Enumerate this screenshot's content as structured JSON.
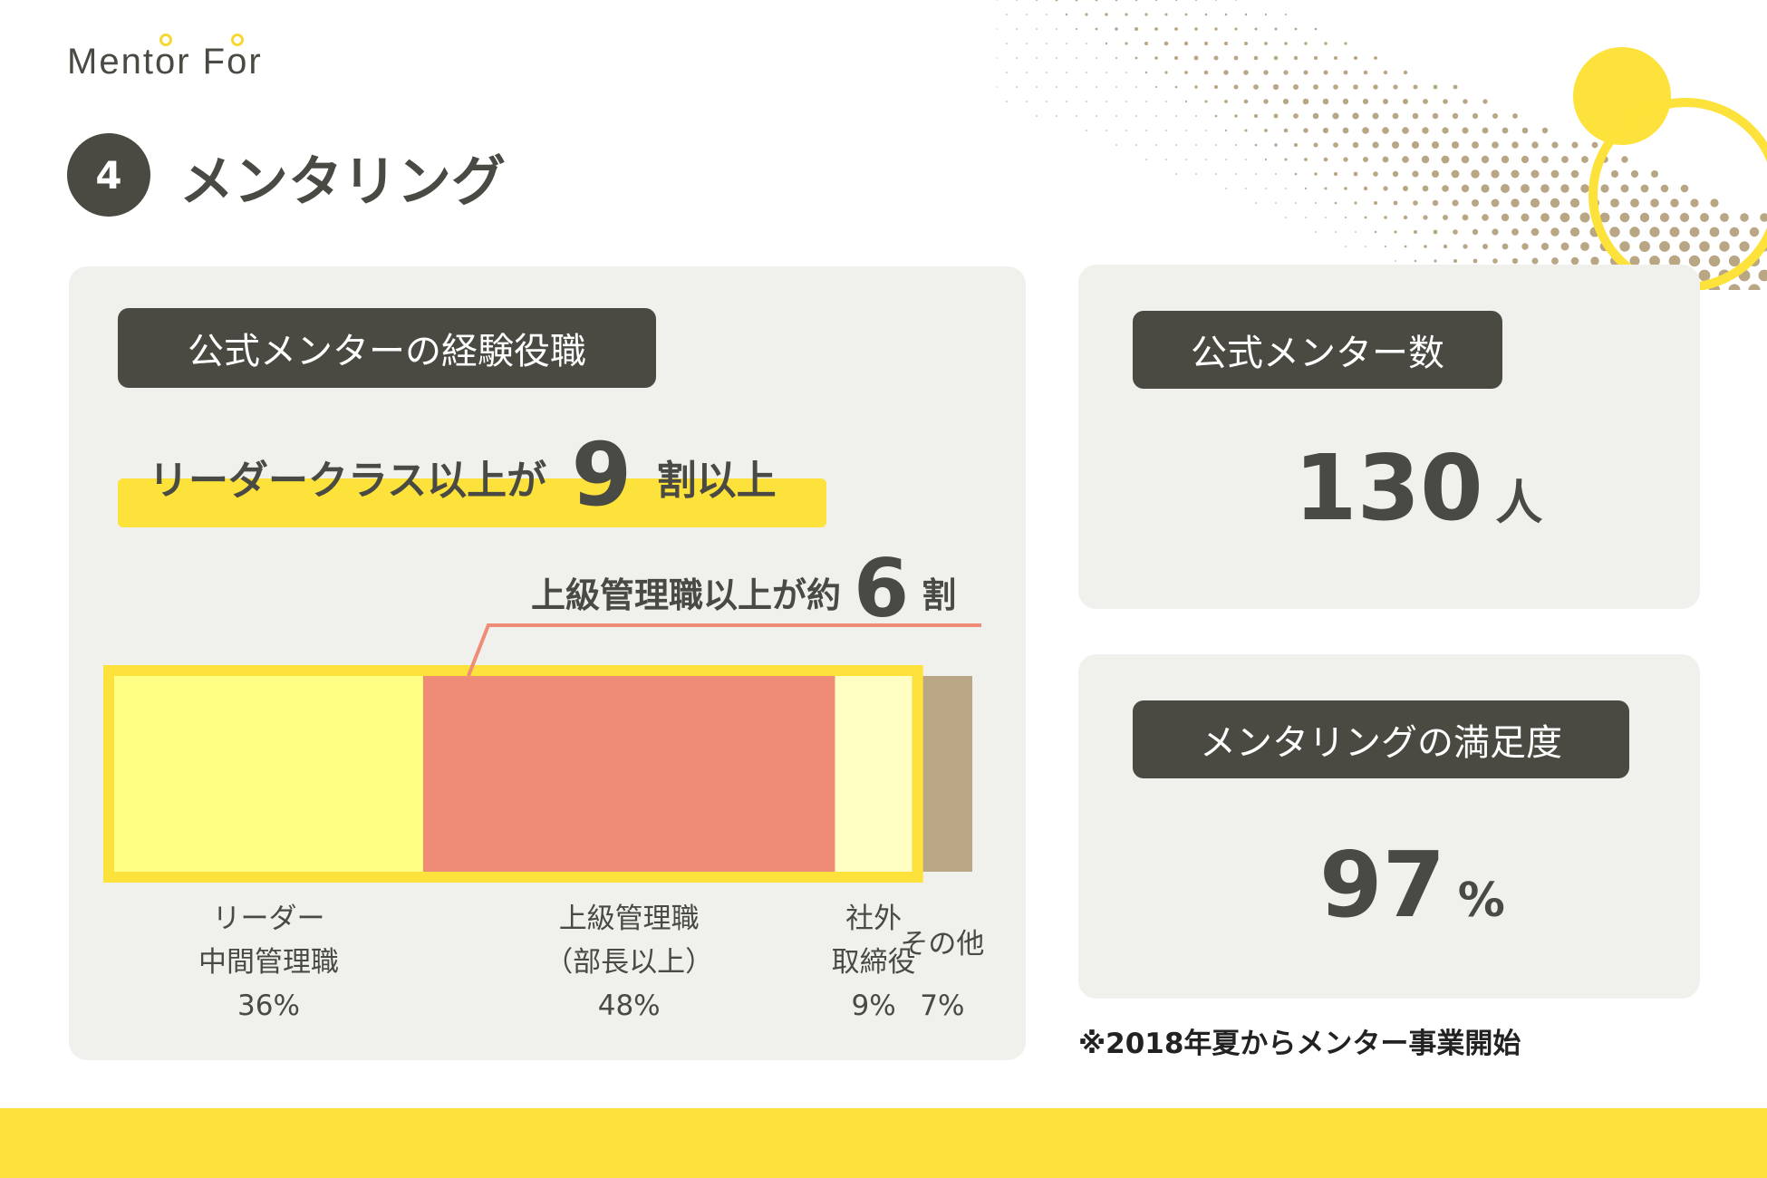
{
  "brand": {
    "logo_text_a": "Ment",
    "logo_text_o": "o",
    "logo_text_b": "r F",
    "logo_text_o2": "o",
    "logo_text_c": "r"
  },
  "header": {
    "section_number": "4",
    "title": "メンタリング"
  },
  "left_card": {
    "label": "公式メンターの経験役職",
    "headline_prefix": "リーダークラス以上が",
    "headline_number": "9",
    "headline_suffix": "割以上",
    "callout_prefix": "上級管理職以上が約",
    "callout_number": "6",
    "callout_suffix": "割"
  },
  "right_top": {
    "label": "公式メンター数",
    "value": "130",
    "unit": "人"
  },
  "right_bottom": {
    "label": "メンタリングの満足度",
    "value": "97",
    "unit": "%"
  },
  "footnote": "※2018年夏からメンター事業開始",
  "colors": {
    "yellow": "#fde23b",
    "segment_leader": "#ffff84",
    "segment_senior": "#ee8c78",
    "segment_external": "#ffffc4",
    "segment_other": "#b8a684",
    "callout_line": "#ee8c78",
    "dark": "#4a4a42"
  },
  "chart_data": {
    "type": "bar",
    "orientation": "horizontal-stacked",
    "title": "公式メンターの経験役職",
    "categories": [
      "リーダー\n中間管理職",
      "上級管理職\n（部長以上）",
      "社外\n取締役",
      "その他"
    ],
    "values": [
      36,
      48,
      9,
      7
    ],
    "value_labels": [
      "36%",
      "48%",
      "9%",
      "7%"
    ],
    "unit": "%",
    "highlighted_group": [
      "リーダー\n中間管理職",
      "上級管理職\n（部長以上）",
      "社外\n取締役"
    ]
  }
}
